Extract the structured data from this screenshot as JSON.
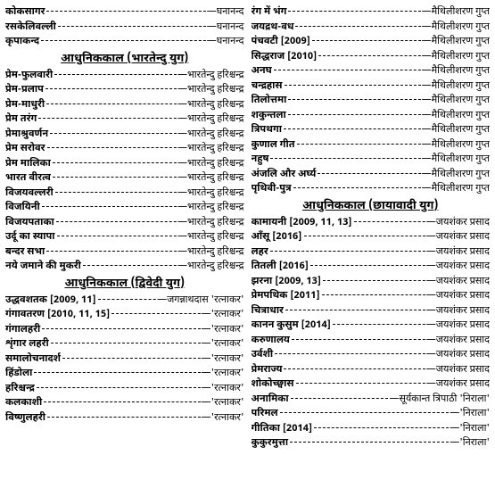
{
  "leftTop": [
    {
      "work": "कोकसागर",
      "author": "घनानन्द"
    },
    {
      "work": "रसकेलिवल्ली",
      "author": "घनानन्द"
    },
    {
      "work": "कृपाकन्द",
      "author": "घनानन्द"
    }
  ],
  "section1": "आधुनिककाल (भारतेन्दु युग)",
  "bhartendu": [
    {
      "work": "प्रेम-फुलवारी",
      "author": "भारतेन्दु हरिश्चन्द्र"
    },
    {
      "work": "प्रेम-प्रलाप",
      "author": "भारतेन्दु हरिश्चन्द्र"
    },
    {
      "work": "प्रेम-माधुरी",
      "author": "भारतेन्दु हरिश्चन्द्र"
    },
    {
      "work": "प्रेम तरंग",
      "author": "भारतेन्दु हरिश्चन्द्र"
    },
    {
      "work": "प्रेमाश्रुवर्णन",
      "author": "भारतेन्दु हरिश्चन्द्र"
    },
    {
      "work": "प्रेम सरोवर",
      "author": "भारतेन्दु हरिश्चन्द्र"
    },
    {
      "work": "प्रेम मालिका",
      "author": "भारतेन्दु हरिश्चन्द्र"
    },
    {
      "work": "भारत वीरत्व",
      "author": "भारतेन्दु हरिश्चन्द्र"
    },
    {
      "work": "विजयवल्लरी",
      "author": "भारतेन्दु हरिश्चन्द्र"
    },
    {
      "work": "विजयिनी",
      "author": "भारतेन्दु हरिश्चन्द्र"
    },
    {
      "work": "विजयपताका",
      "author": "भारतेन्दु हरिश्चन्द्र"
    },
    {
      "work": "उर्दू का स्यापा",
      "author": "भारतेन्दु हरिश्चन्द्र"
    },
    {
      "work": "बन्दर सभा",
      "author": "भारतेन्दु हरिश्चन्द्र"
    },
    {
      "work": "नये जमाने की मुकरी",
      "author": "भारतेन्दु हरिश्चन्द्र"
    }
  ],
  "section2": "आधुनिककाल (द्विवेदी युग)",
  "dwivedi": [
    {
      "work": "उद्धवशतक [2009, 11]",
      "author": "जगन्नाथदास 'रत्नाकर'"
    },
    {
      "work": "गंगावतरण [2010, 11, 15]",
      "author": "'रत्नाकर'"
    },
    {
      "work": "गंगालहरी",
      "author": "'रत्नाकर'"
    },
    {
      "work": "शृंगार लहरी",
      "author": "'रत्नाकर'"
    },
    {
      "work": "समालोचनादर्श",
      "author": "'रत्नाकर'"
    },
    {
      "work": "हिंडोला",
      "author": "'रत्नाकर'"
    },
    {
      "work": "हरिश्चन्द्र",
      "author": "'रत्नाकर'"
    },
    {
      "work": "कलकाशी",
      "author": "'रत्नाकर'"
    },
    {
      "work": "विष्णुलहरी",
      "author": "'रत्नाकर'"
    }
  ],
  "rightTop": [
    {
      "work": "रंग में भंग",
      "author": "मैथिलीशरण गुप्त"
    },
    {
      "work": "जयद्रथ-वध",
      "author": "मैथिलीशरण गुप्त"
    },
    {
      "work": "पंचवटी [2009]",
      "author": "मैथिलीशरण गुप्त"
    },
    {
      "work": "सिद्धराज [2010]",
      "author": "मैथिलीशरण गुप्त"
    },
    {
      "work": "अनघ",
      "author": "मैथिलीशरण गुप्त"
    },
    {
      "work": "चन्द्रहास",
      "author": "मैथिलीशरण गुप्त"
    },
    {
      "work": "तिलोत्तमा",
      "author": "मैथिलीशरण गुप्त"
    },
    {
      "work": "शकुन्तला",
      "author": "मैथिलीशरण गुप्त"
    },
    {
      "work": "त्रिपथगा",
      "author": "मैथिलीशरण गुप्त"
    },
    {
      "work": "कुणाल गीत",
      "author": "मैथिलीशरण गुप्त"
    },
    {
      "work": "नहुष",
      "author": "मैथिलीशरण गुप्त"
    },
    {
      "work": "अंजलि और अर्घ्य",
      "author": "मैथिलीशरण गुप्त"
    },
    {
      "work": "पृथिवी-पुत्र",
      "author": "मैथिलीशरण गुप्त"
    }
  ],
  "section3": "आधुनिककाल (छायावादी युग)",
  "chhayavad": [
    {
      "work": "कामायनी [2009, 11, 13]",
      "author": "जयशंकर प्रसाद"
    },
    {
      "work": "आँसू [2016]",
      "author": "जयशंकर प्रसाद"
    },
    {
      "work": "लहर",
      "author": "जयशंकर प्रसाद"
    },
    {
      "work": "तितली [2016]",
      "author": "जयशंकर प्रसाद"
    },
    {
      "work": "झरना [2009, 13]",
      "author": "जयशंकर प्रसाद"
    },
    {
      "work": "प्रेमपथिक [2011]",
      "author": "जयशंकर प्रसाद"
    },
    {
      "work": "चित्राधार",
      "author": "जयशंकर प्रसाद"
    },
    {
      "work": "कानन कुसुम [2014]",
      "author": "जयशंकर प्रसाद"
    },
    {
      "work": "करुणालय",
      "author": "जयशंकर प्रसाद"
    },
    {
      "work": "उर्वशी",
      "author": "जयशंकर प्रसाद"
    },
    {
      "work": "प्रेमराज्य",
      "author": "जयशंकर प्रसाद"
    },
    {
      "work": "शोकोच्छ्वास",
      "author": "जयशंकर प्रसाद"
    },
    {
      "work": "अनामिका",
      "author": "सूर्यकान्त त्रिपाठी 'निराला'"
    },
    {
      "work": "परिमल",
      "author": "'निराला'"
    },
    {
      "work": "गीतिका [2014]",
      "author": "'निराला'"
    },
    {
      "work": "कुकुरमुत्ता",
      "author": "'निराला'"
    }
  ]
}
